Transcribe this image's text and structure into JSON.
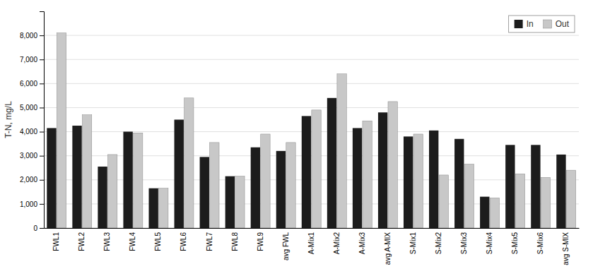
{
  "chart_data": {
    "type": "bar",
    "categories": [
      "FWL1",
      "FWL2",
      "FWL3",
      "FWL4",
      "FWL5",
      "FWL6",
      "FWL7",
      "FWL8",
      "FWL9",
      "avg FWL",
      "A-Mix1",
      "A-Mix2",
      "A-Mix3",
      "avg A-MIX",
      "S-Mix1",
      "S-Mix2",
      "S-Mix3",
      "S-Mix4",
      "S-Mix5",
      "S-Mix6",
      "avg S-MIX"
    ],
    "series": [
      {
        "name": "In",
        "color": "#1c1c1c",
        "values": [
          4150,
          4250,
          2550,
          4000,
          1650,
          4500,
          2950,
          2150,
          3350,
          3200,
          4650,
          5400,
          4150,
          4800,
          3800,
          4050,
          3700,
          1300,
          3450,
          3450,
          3050
        ]
      },
      {
        "name": "Out",
        "color": "#c8c8c8",
        "values": [
          8100,
          4700,
          3050,
          3950,
          1650,
          5400,
          3550,
          2150,
          3900,
          3550,
          4900,
          6400,
          4450,
          5250,
          3900,
          2200,
          2650,
          1250,
          2250,
          2100,
          2400
        ]
      }
    ],
    "ylabel": "T-N, mg/L",
    "ylim": [
      0,
      9000
    ],
    "yticks": [
      0,
      {
        "value": 1000,
        "label": "1,000"
      },
      {
        "value": 2000,
        "label": "2,000"
      },
      {
        "value": 3000,
        "label": "3,000"
      },
      {
        "value": 4000,
        "label": "4,000"
      },
      {
        "value": 5000,
        "label": "5,000"
      },
      {
        "value": 6000,
        "label": "6,000"
      },
      {
        "value": 7000,
        "label": "7,000"
      },
      {
        "value": 8000,
        "label": "8,000"
      }
    ],
    "grid": true,
    "legend": "top-right"
  }
}
